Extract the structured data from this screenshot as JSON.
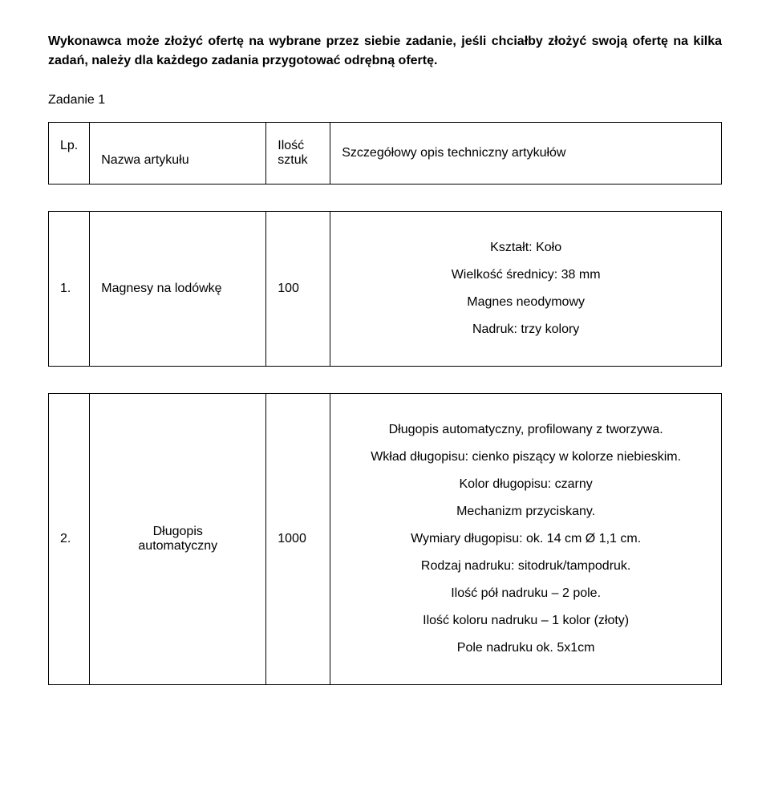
{
  "intro": "Wykonawca może złożyć ofertę na wybrane przez siebie zadanie, jeśli chciałby złożyć swoją ofertę na kilka zadań, należy dla każdego zadania przygotować odrębną ofertę.",
  "task_label": "Zadanie 1",
  "headers": {
    "lp": "Lp.",
    "name": "Nazwa artykułu",
    "qty_l1": "Ilość",
    "qty_l2": "sztuk",
    "desc": "Szczegółowy opis techniczny artykułów"
  },
  "row1": {
    "lp": "1.",
    "name": "Magnesy na lodówkę",
    "qty": "100",
    "spec1": "Kształt: Koło",
    "spec2": "Wielkość średnicy: 38 mm",
    "spec3": "Magnes neodymowy",
    "spec4": "Nadruk: trzy kolory"
  },
  "row2": {
    "lp": "2.",
    "name_l1": "Długopis",
    "name_l2": "automatyczny",
    "qty": "1000",
    "spec1": "Długopis automatyczny, profilowany z tworzywa.",
    "spec2": "Wkład długopisu: cienko piszący w kolorze niebieskim.",
    "spec3": "Kolor długopisu: czarny",
    "spec4": "Mechanizm przyciskany.",
    "spec5": "Wymiary długopisu: ok. 14 cm Ø 1,1 cm.",
    "spec6": "Rodzaj nadruku: sitodruk/tampodruk.",
    "spec7": "Ilość pół nadruku – 2 pole.",
    "spec8": "Ilość koloru nadruku – 1 kolor (złoty)",
    "spec9": "Pole nadruku ok. 5x1cm"
  }
}
